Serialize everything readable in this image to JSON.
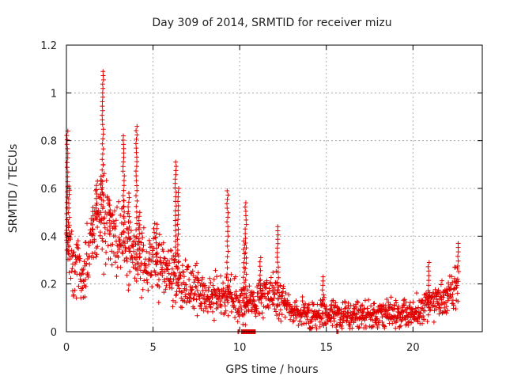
{
  "chart_data": {
    "type": "scatter",
    "title": "Day 309 of 2014, SRMTID for receiver mizu",
    "xlabel": "GPS time / hours",
    "ylabel": "SRMTID / TECUs",
    "xlim": [
      0,
      24
    ],
    "ylim": [
      0,
      1.2
    ],
    "xticks": [
      0,
      5,
      10,
      15,
      20
    ],
    "xtick_labels": [
      "0",
      "5",
      "10",
      "15",
      "20"
    ],
    "yticks": [
      0,
      0.2,
      0.4,
      0.6,
      0.8,
      1.0,
      1.2
    ],
    "ytick_labels": [
      "0",
      "0.2",
      "0.4",
      "0.6",
      "0.8",
      "1",
      "1.2"
    ],
    "grid": true,
    "marker": "+",
    "color": "#e00000",
    "envelope": {
      "x": [
        0,
        0.3,
        0.7,
        1.0,
        1.3,
        1.6,
        1.8,
        2.0,
        2.3,
        2.6,
        3.0,
        3.3,
        3.6,
        4.0,
        4.3,
        4.7,
        5.0,
        5.5,
        6.0,
        6.5,
        7.0,
        7.5,
        8.0,
        8.5,
        9.0,
        9.5,
        10.0,
        10.5,
        11.0,
        11.5,
        12.0,
        12.5,
        13.0,
        14.0,
        15.0,
        16.0,
        17.0,
        18.0,
        19.0,
        20.0,
        20.5,
        21.0,
        21.5,
        22.0,
        22.3,
        22.6
      ],
      "center": [
        0.35,
        0.3,
        0.25,
        0.25,
        0.32,
        0.4,
        0.45,
        0.5,
        0.42,
        0.4,
        0.4,
        0.38,
        0.35,
        0.33,
        0.3,
        0.28,
        0.3,
        0.28,
        0.25,
        0.22,
        0.2,
        0.18,
        0.16,
        0.15,
        0.15,
        0.14,
        0.12,
        0.12,
        0.13,
        0.15,
        0.15,
        0.12,
        0.08,
        0.07,
        0.08,
        0.07,
        0.07,
        0.07,
        0.07,
        0.08,
        0.09,
        0.12,
        0.13,
        0.14,
        0.18,
        0.22
      ],
      "spread": [
        0.12,
        0.1,
        0.08,
        0.08,
        0.1,
        0.12,
        0.14,
        0.15,
        0.13,
        0.12,
        0.12,
        0.12,
        0.1,
        0.1,
        0.09,
        0.09,
        0.1,
        0.09,
        0.09,
        0.08,
        0.07,
        0.07,
        0.06,
        0.06,
        0.06,
        0.06,
        0.06,
        0.05,
        0.05,
        0.06,
        0.06,
        0.05,
        0.04,
        0.04,
        0.04,
        0.04,
        0.04,
        0.04,
        0.04,
        0.04,
        0.05,
        0.05,
        0.05,
        0.05,
        0.06,
        0.07
      ]
    },
    "spikes": [
      {
        "x": 0.05,
        "peak": 0.84
      },
      {
        "x": 0.15,
        "peak": 0.61
      },
      {
        "x": 1.5,
        "peak": 0.52
      },
      {
        "x": 1.75,
        "peak": 0.63
      },
      {
        "x": 2.0,
        "peak": 0.65
      },
      {
        "x": 2.1,
        "peak": 1.09
      },
      {
        "x": 2.5,
        "peak": 0.55
      },
      {
        "x": 3.3,
        "peak": 0.82
      },
      {
        "x": 3.6,
        "peak": 0.58
      },
      {
        "x": 4.05,
        "peak": 0.86
      },
      {
        "x": 4.2,
        "peak": 0.5
      },
      {
        "x": 5.2,
        "peak": 0.45
      },
      {
        "x": 6.3,
        "peak": 0.71
      },
      {
        "x": 6.45,
        "peak": 0.6
      },
      {
        "x": 9.3,
        "peak": 0.59
      },
      {
        "x": 10.35,
        "peak": 0.54
      },
      {
        "x": 10.25,
        "peak": 0.38
      },
      {
        "x": 11.2,
        "peak": 0.31
      },
      {
        "x": 12.2,
        "peak": 0.44
      },
      {
        "x": 14.8,
        "peak": 0.23
      },
      {
        "x": 20.9,
        "peak": 0.29
      },
      {
        "x": 22.6,
        "peak": 0.37
      }
    ],
    "baseline_marks": [
      {
        "x0": 9.9,
        "x1": 9.95
      },
      {
        "x0": 10.1,
        "x1": 10.9
      },
      {
        "x0": 15.6,
        "x1": 15.7
      }
    ]
  }
}
